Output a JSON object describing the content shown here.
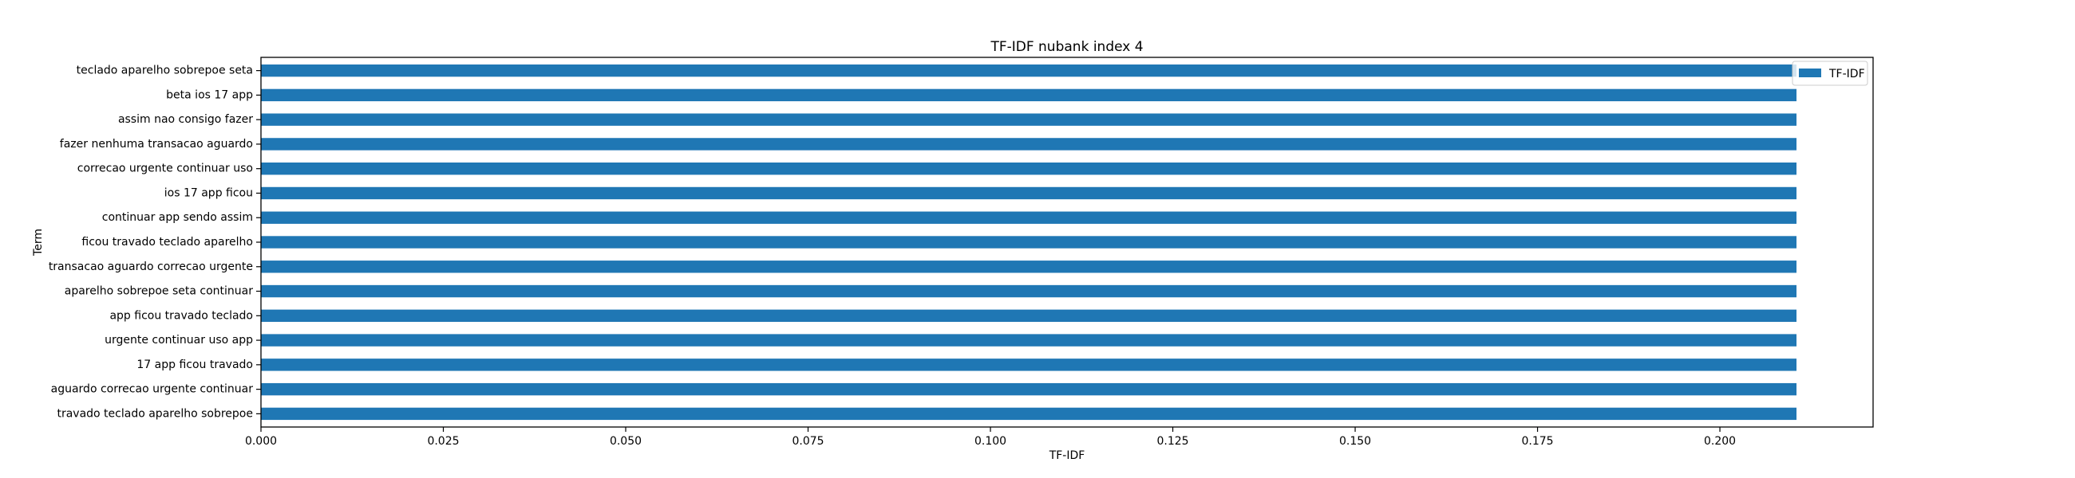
{
  "chart_data": {
    "type": "bar",
    "orientation": "horizontal",
    "title": "TF-IDF nubank index 4",
    "xlabel": "TF-IDF",
    "ylabel": "Term",
    "xlim": [
      0,
      0.221
    ],
    "x_ticks": [
      0.0,
      0.025,
      0.05,
      0.075,
      0.1,
      0.125,
      0.15,
      0.175,
      0.2
    ],
    "x_tick_labels": [
      "0.000",
      "0.025",
      "0.050",
      "0.075",
      "0.100",
      "0.125",
      "0.150",
      "0.175",
      "0.200"
    ],
    "categories": [
      "teclado aparelho sobrepoe seta",
      "beta ios 17 app",
      "assim nao consigo fazer",
      "fazer nenhuma transacao aguardo",
      "correcao urgente continuar uso",
      "ios 17 app ficou",
      "continuar app sendo assim",
      "ficou travado teclado aparelho",
      "transacao aguardo correcao urgente",
      "aparelho sobrepoe seta continuar",
      "app ficou travado teclado",
      "urgente continuar uso app",
      "17 app ficou travado",
      "aguardo correcao urgente continuar",
      "travado teclado aparelho sobrepoe"
    ],
    "series": [
      {
        "name": "TF-IDF",
        "color": "#1f77b4",
        "values": [
          0.2105,
          0.2105,
          0.2105,
          0.2105,
          0.2105,
          0.2105,
          0.2105,
          0.2105,
          0.2105,
          0.2105,
          0.2105,
          0.2105,
          0.2105,
          0.2105,
          0.2105
        ]
      }
    ],
    "legend": {
      "position": "top-right",
      "entries": [
        "TF-IDF"
      ]
    },
    "grid": false
  }
}
